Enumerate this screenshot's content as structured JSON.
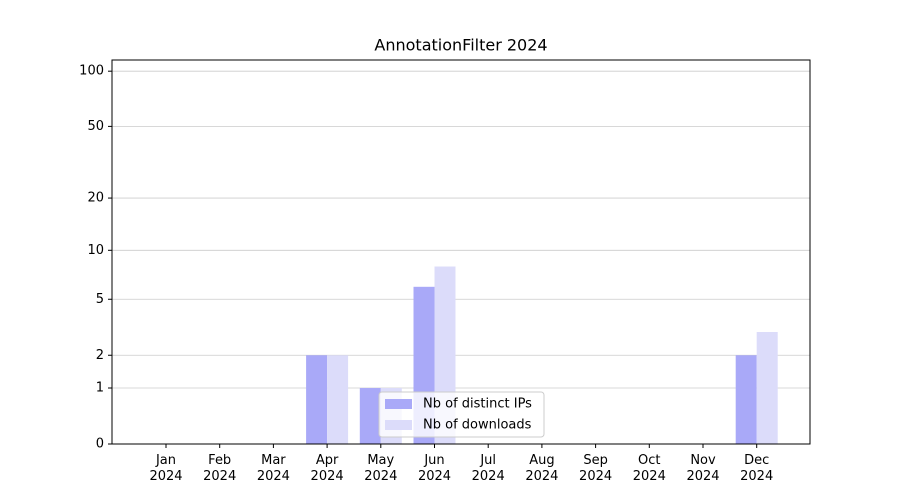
{
  "chart_data": {
    "type": "bar",
    "title": "AnnotationFilter 2024",
    "categories": [
      "Jan\n2024",
      "Feb\n2024",
      "Mar\n2024",
      "Apr\n2024",
      "May\n2024",
      "Jun\n2024",
      "Jul\n2024",
      "Aug\n2024",
      "Sep\n2024",
      "Oct\n2024",
      "Nov\n2024",
      "Dec\n2024"
    ],
    "series": [
      {
        "name": "Nb of distinct IPs",
        "color": "#a9a9f8",
        "values": [
          0,
          0,
          0,
          2,
          1,
          6,
          0,
          0,
          0,
          0,
          0,
          2
        ]
      },
      {
        "name": "Nb of downloads",
        "color": "#dcdcfa",
        "values": [
          0,
          0,
          0,
          2,
          1,
          8,
          0,
          0,
          0,
          0,
          0,
          3
        ]
      }
    ],
    "yscale": "log1p",
    "ylim": [
      0,
      115
    ],
    "yticks": [
      0,
      1,
      2,
      5,
      10,
      20,
      50,
      100
    ],
    "grid": true,
    "legend": "lower center"
  }
}
